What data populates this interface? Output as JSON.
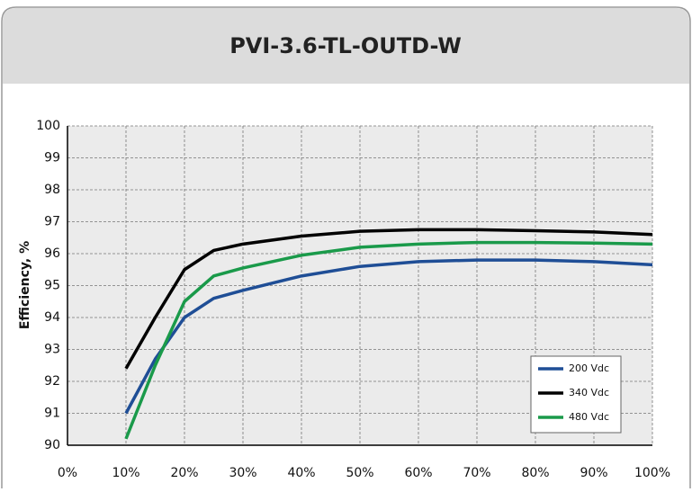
{
  "chart_data": {
    "type": "line",
    "title": "PVI-3.6-TL-OUTD-W",
    "y_label": "Efficiency, %",
    "x": [
      10,
      15,
      20,
      25,
      30,
      40,
      50,
      60,
      70,
      80,
      90,
      100
    ],
    "series": [
      {
        "name": "200 Vdc",
        "color": "#1f4e96",
        "values": [
          91.0,
          92.7,
          94.0,
          94.6,
          94.85,
          95.3,
          95.6,
          95.75,
          95.8,
          95.8,
          95.75,
          95.65
        ]
      },
      {
        "name": "340 Vdc",
        "color": "#000000",
        "values": [
          92.4,
          94.0,
          95.5,
          96.1,
          96.3,
          96.55,
          96.7,
          96.75,
          96.75,
          96.72,
          96.68,
          96.6
        ]
      },
      {
        "name": "480 Vdc",
        "color": "#1a9a4a",
        "values": [
          90.2,
          92.5,
          94.5,
          95.3,
          95.55,
          95.95,
          96.2,
          96.3,
          96.35,
          96.35,
          96.33,
          96.3
        ]
      }
    ],
    "xlim": [
      0,
      100
    ],
    "xticks": [
      {
        "value": 0,
        "label": "0%"
      },
      {
        "value": 10,
        "label": "10%"
      },
      {
        "value": 20,
        "label": "20%"
      },
      {
        "value": 30,
        "label": "30%"
      },
      {
        "value": 40,
        "label": "40%"
      },
      {
        "value": 50,
        "label": "50%"
      },
      {
        "value": 60,
        "label": "60%"
      },
      {
        "value": 70,
        "label": "70%"
      },
      {
        "value": 80,
        "label": "80%"
      },
      {
        "value": 90,
        "label": "90%"
      },
      {
        "value": 100,
        "label": "100%"
      }
    ],
    "ylim": [
      90,
      100
    ],
    "yticks": [
      90,
      91,
      92,
      93,
      94,
      95,
      96,
      97,
      98,
      99,
      100
    ],
    "grid": true,
    "legend": "lower right"
  }
}
